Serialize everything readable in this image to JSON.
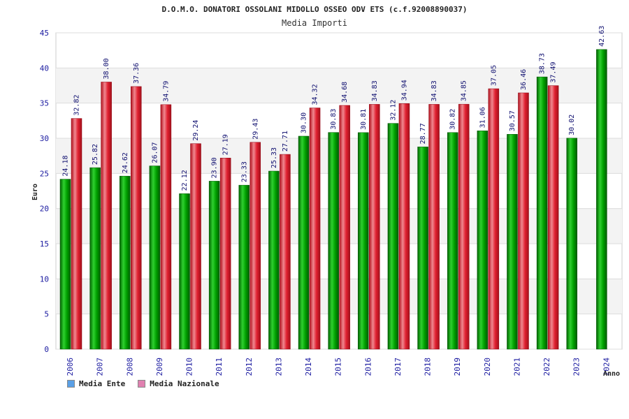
{
  "chart_data": {
    "type": "bar",
    "title": "D.O.M.O. DONATORI OSSOLANI MIDOLLO OSSEO ODV ETS (c.f.92008890037)",
    "subtitle": "Media Importi",
    "xlabel": "Anno",
    "ylabel": "Euro",
    "ylim": [
      0,
      45
    ],
    "yticks": [
      0,
      5,
      10,
      15,
      20,
      25,
      30,
      35,
      40,
      45
    ],
    "grid": true,
    "legend_position": "bottom-left",
    "categories": [
      "2006",
      "2007",
      "2008",
      "2009",
      "2010",
      "2011",
      "2012",
      "2013",
      "2014",
      "2015",
      "2016",
      "2017",
      "2018",
      "2019",
      "2020",
      "2021",
      "2022",
      "2023",
      "2024"
    ],
    "series": [
      {
        "name": "Media Ente",
        "color": "#00b000",
        "legend_color": "#5aa0e6",
        "values": [
          24.18,
          25.82,
          24.62,
          26.07,
          22.12,
          23.9,
          23.33,
          25.33,
          30.3,
          30.83,
          30.81,
          32.12,
          28.77,
          30.82,
          31.06,
          30.57,
          38.73,
          30.02,
          42.63
        ],
        "labels": [
          "24.18",
          "25.82",
          "24.62",
          "26.07",
          "22.12",
          "23.90",
          "23.33",
          "25.33",
          "30.30",
          "30.83",
          "30.81",
          "32.12",
          "28.77",
          "30.82",
          "31.06",
          "30.57",
          "38.73",
          "30.02",
          "42.63"
        ]
      },
      {
        "name": "Media Nazionale",
        "color": "#e02030",
        "legend_color": "#e080b0",
        "values": [
          32.82,
          38.0,
          37.36,
          34.79,
          29.24,
          27.19,
          29.43,
          27.71,
          34.32,
          34.68,
          34.83,
          34.94,
          34.83,
          34.85,
          37.05,
          36.46,
          37.49,
          null,
          null
        ],
        "labels": [
          "32.82",
          "38.00",
          "37.36",
          "34.79",
          "29.24",
          "27.19",
          "29.43",
          "27.71",
          "34.32",
          "34.68",
          "34.83",
          "34.94",
          "34.83",
          "34.85",
          "37.05",
          "36.46",
          "37.49",
          null,
          null
        ]
      }
    ]
  }
}
